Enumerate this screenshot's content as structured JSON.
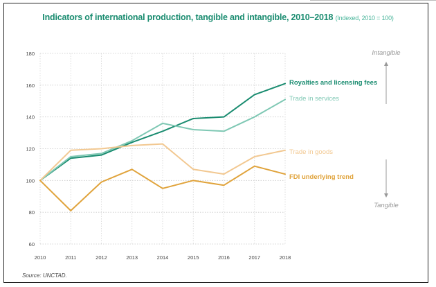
{
  "title": "Indicators of international production, tangible and intangible, 2010–2018",
  "subtitle": "(Indexed, 2010 = 100)",
  "source_label": "Source:",
  "source_text": "UNCTAD.",
  "axis_labels": {
    "top": "Intangible",
    "bottom": "Tangible"
  },
  "chart_data": {
    "type": "line",
    "title": "Indicators of international production, tangible and intangible, 2010–2018",
    "subtitle": "(Indexed, 2010 = 100)",
    "x": [
      "2010",
      "2011",
      "2012",
      "2013",
      "2014",
      "2015",
      "2016",
      "2017",
      "2018"
    ],
    "ylim": [
      60,
      180
    ],
    "yticks": [
      60,
      80,
      100,
      120,
      140,
      160,
      180
    ],
    "grid": "horizontal-dotted",
    "legend": "right, inline labels",
    "series": [
      {
        "name": "Royalties and licensing fees",
        "color": "#1a8c70",
        "bold": true,
        "values": [
          100,
          114,
          116,
          124,
          131,
          139,
          140,
          154,
          161
        ]
      },
      {
        "name": "Trade in services",
        "color": "#7fc8b4",
        "bold": false,
        "values": [
          100,
          115,
          117,
          125,
          136,
          132,
          131,
          140,
          151
        ]
      },
      {
        "name": "Trade in goods",
        "color": "#f2c891",
        "bold": false,
        "values": [
          100,
          119,
          120,
          122,
          123,
          107,
          104,
          115,
          119
        ]
      },
      {
        "name": "FDI underlying trend",
        "color": "#e0a33b",
        "bold": true,
        "values": [
          100,
          81,
          99,
          107,
          95,
          100,
          97,
          109,
          104
        ]
      }
    ]
  }
}
